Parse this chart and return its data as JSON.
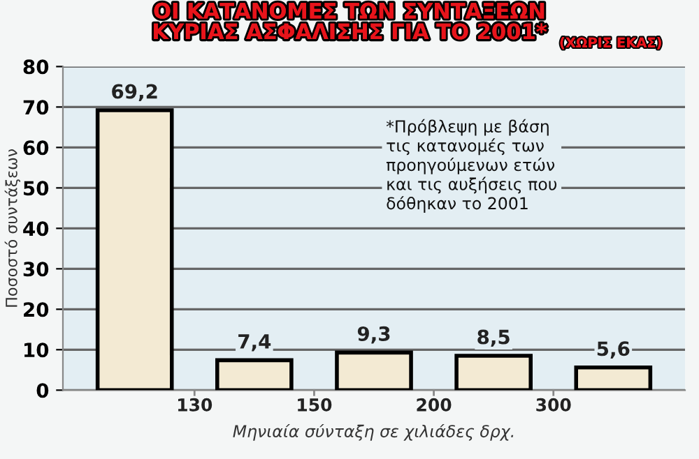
{
  "chart_data": {
    "type": "bar",
    "title": "ΟΙ ΚΑΤΑΝΟΜΕΣ ΤΩΝ ΣΥΝΤΑΞΕΩΝ\nΚΥΡΙΑΣ ΑΣΦΑΛΙΣΗΣ ΓΙΑ ΤΟ 2001*",
    "subtitle": "(ΧΩΡΙΣ ΕΚΑΣ)",
    "xlabel": "Μηνιαία σύνταξη σε χιλιάδες δρχ.",
    "ylabel": "Ποσοστό συντάξεων",
    "categories": [
      null,
      null,
      null,
      null,
      null
    ],
    "values": [
      69.2,
      7.4,
      9.3,
      8.5,
      5.6
    ],
    "value_labels": [
      "69,2",
      "7,4",
      "9,3",
      "8,5",
      "5,6"
    ],
    "color": "#f3ead3",
    "ylim": [
      0,
      80
    ],
    "yticks": [
      0,
      10,
      20,
      30,
      40,
      50,
      60,
      70,
      80
    ],
    "grid": "y",
    "annotations": [
      "130",
      "150",
      "200",
      "300",
      "*Πρόβλεψη με βάση\nτις κατανομές των\nπροηγούμενων ετών\nκαι τις αυξήσεις που\nδόθηκαν το 2001"
    ]
  }
}
